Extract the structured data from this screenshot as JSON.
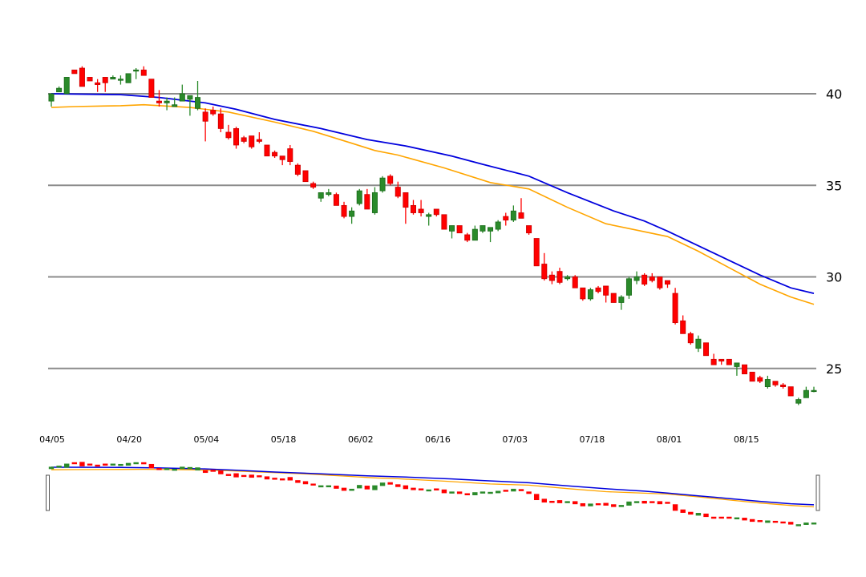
{
  "chart_data": {
    "type": "candlestick",
    "grid": true,
    "y_axis_position": "right",
    "y_ticks": [
      25,
      30,
      35,
      40
    ],
    "x_tick_labels": [
      "04/05",
      "04/20",
      "05/04",
      "05/18",
      "06/02",
      "06/16",
      "07/03",
      "07/18",
      "08/01",
      "08/15"
    ],
    "candles": [
      [
        39.6,
        40.0,
        39.3,
        40.0
      ],
      [
        40.1,
        40.4,
        40.1,
        40.3
      ],
      [
        40.0,
        40.9,
        40.0,
        40.9
      ],
      [
        41.3,
        41.3,
        41.2,
        41.1
      ],
      [
        41.4,
        41.5,
        40.4,
        40.4
      ],
      [
        40.9,
        40.9,
        40.7,
        40.7
      ],
      [
        40.6,
        40.8,
        40.1,
        40.5
      ],
      [
        40.9,
        40.9,
        40.1,
        40.6
      ],
      [
        40.8,
        41.0,
        40.8,
        40.9
      ],
      [
        40.8,
        41.0,
        40.5,
        40.8
      ],
      [
        40.6,
        41.1,
        40.6,
        41.1
      ],
      [
        41.3,
        41.4,
        40.8,
        41.3
      ],
      [
        41.3,
        41.5,
        41.0,
        41.0
      ],
      [
        40.8,
        40.8,
        39.8,
        39.8
      ],
      [
        39.6,
        40.2,
        39.3,
        39.5
      ],
      [
        39.5,
        39.8,
        39.1,
        39.6
      ],
      [
        39.3,
        39.8,
        39.3,
        39.4
      ],
      [
        39.6,
        40.5,
        39.6,
        40.0
      ],
      [
        39.7,
        39.8,
        38.8,
        39.9
      ],
      [
        39.2,
        40.7,
        39.1,
        39.8
      ],
      [
        39.0,
        39.2,
        37.4,
        38.5
      ],
      [
        39.1,
        39.3,
        38.8,
        38.9
      ],
      [
        38.9,
        39.2,
        37.9,
        38.1
      ],
      [
        37.9,
        38.3,
        37.5,
        37.6
      ],
      [
        38.1,
        38.2,
        37.0,
        37.2
      ],
      [
        37.6,
        37.7,
        37.3,
        37.4
      ],
      [
        37.7,
        37.7,
        37.0,
        37.1
      ],
      [
        37.5,
        37.9,
        37.3,
        37.4
      ],
      [
        37.2,
        37.2,
        36.6,
        36.6
      ],
      [
        36.8,
        36.9,
        36.5,
        36.6
      ],
      [
        36.6,
        36.6,
        36.1,
        36.4
      ],
      [
        37.0,
        37.2,
        36.1,
        36.3
      ],
      [
        36.1,
        36.2,
        35.5,
        35.6
      ],
      [
        35.8,
        35.8,
        35.2,
        35.2
      ],
      [
        35.1,
        35.2,
        34.8,
        34.9
      ],
      [
        34.3,
        34.6,
        34.1,
        34.6
      ],
      [
        34.5,
        34.8,
        34.4,
        34.6
      ],
      [
        34.5,
        34.6,
        33.9,
        33.9
      ],
      [
        33.9,
        34.1,
        33.2,
        33.3
      ],
      [
        33.3,
        33.8,
        32.9,
        33.6
      ],
      [
        34.0,
        34.8,
        33.9,
        34.7
      ],
      [
        34.5,
        34.8,
        33.7,
        33.7
      ],
      [
        33.5,
        34.9,
        33.4,
        34.6
      ],
      [
        34.7,
        35.5,
        34.6,
        35.4
      ],
      [
        35.5,
        35.6,
        35.0,
        35.1
      ],
      [
        34.9,
        35.2,
        34.3,
        34.4
      ],
      [
        34.6,
        34.6,
        32.9,
        33.8
      ],
      [
        33.9,
        34.2,
        33.4,
        33.5
      ],
      [
        33.7,
        34.2,
        33.3,
        33.5
      ],
      [
        33.3,
        33.5,
        32.8,
        33.4
      ],
      [
        33.7,
        33.7,
        33.3,
        33.4
      ],
      [
        33.4,
        33.4,
        32.6,
        32.6
      ],
      [
        32.5,
        32.8,
        32.1,
        32.8
      ],
      [
        32.8,
        32.8,
        32.4,
        32.4
      ],
      [
        32.3,
        32.4,
        31.9,
        32.0
      ],
      [
        32.0,
        32.8,
        32.0,
        32.6
      ],
      [
        32.5,
        32.8,
        32.4,
        32.8
      ],
      [
        32.5,
        32.6,
        31.9,
        32.7
      ],
      [
        32.6,
        33.1,
        32.5,
        33.0
      ],
      [
        33.3,
        33.5,
        32.8,
        33.1
      ],
      [
        33.1,
        33.9,
        33.0,
        33.6
      ],
      [
        33.5,
        34.3,
        33.2,
        33.2
      ],
      [
        32.8,
        32.8,
        32.3,
        32.4
      ],
      [
        32.1,
        32.1,
        30.6,
        30.6
      ],
      [
        30.7,
        31.3,
        29.8,
        29.9
      ],
      [
        30.1,
        30.3,
        29.6,
        29.8
      ],
      [
        30.3,
        30.5,
        29.6,
        29.7
      ],
      [
        29.9,
        30.1,
        29.8,
        30.0
      ],
      [
        30.0,
        30.1,
        29.4,
        29.4
      ],
      [
        29.4,
        29.4,
        28.7,
        28.8
      ],
      [
        28.8,
        29.4,
        28.7,
        29.3
      ],
      [
        29.4,
        29.5,
        29.1,
        29.2
      ],
      [
        29.5,
        29.5,
        28.6,
        29.0
      ],
      [
        29.1,
        29.1,
        28.6,
        28.6
      ],
      [
        28.6,
        29.0,
        28.2,
        28.9
      ],
      [
        29.0,
        30.0,
        28.8,
        29.9
      ],
      [
        29.8,
        30.3,
        29.6,
        30.0
      ],
      [
        30.1,
        30.2,
        29.5,
        29.6
      ],
      [
        30.0,
        30.2,
        29.7,
        29.8
      ],
      [
        30.0,
        30.0,
        29.3,
        29.4
      ],
      [
        29.8,
        29.8,
        29.4,
        29.6
      ],
      [
        29.1,
        29.4,
        27.4,
        27.5
      ],
      [
        27.6,
        27.9,
        26.9,
        26.9
      ],
      [
        26.9,
        27.0,
        26.3,
        26.4
      ],
      [
        26.1,
        26.8,
        25.9,
        26.6
      ],
      [
        26.4,
        26.4,
        25.7,
        25.7
      ],
      [
        25.5,
        25.8,
        25.2,
        25.2
      ],
      [
        25.5,
        25.5,
        25.2,
        25.4
      ],
      [
        25.5,
        25.5,
        25.2,
        25.2
      ],
      [
        25.1,
        25.3,
        24.6,
        25.3
      ],
      [
        25.2,
        25.2,
        24.7,
        24.7
      ],
      [
        24.8,
        24.8,
        24.3,
        24.3
      ],
      [
        24.5,
        24.6,
        24.2,
        24.3
      ],
      [
        24.0,
        24.6,
        23.9,
        24.4
      ],
      [
        24.3,
        24.3,
        24.0,
        24.1
      ],
      [
        24.1,
        24.2,
        23.9,
        24.0
      ],
      [
        24.0,
        24.0,
        23.5,
        23.5
      ],
      [
        23.1,
        23.4,
        23.0,
        23.3
      ],
      [
        23.4,
        24.0,
        23.4,
        23.8
      ],
      [
        23.8,
        24.0,
        23.7,
        23.8
      ]
    ],
    "sma_blue": [
      [
        0,
        40.0
      ],
      [
        9,
        39.95
      ],
      [
        14,
        39.8
      ],
      [
        20,
        39.5
      ],
      [
        24,
        39.15
      ],
      [
        29,
        38.6
      ],
      [
        35,
        38.1
      ],
      [
        41,
        37.5
      ],
      [
        46,
        37.15
      ],
      [
        52,
        36.6
      ],
      [
        56,
        36.15
      ],
      [
        62,
        35.5
      ],
      [
        67,
        34.6
      ],
      [
        73,
        33.6
      ],
      [
        77,
        33.05
      ],
      [
        80,
        32.5
      ],
      [
        84,
        31.7
      ],
      [
        88,
        30.9
      ],
      [
        92,
        30.1
      ],
      [
        96,
        29.4
      ],
      [
        99,
        29.1
      ]
    ],
    "sma_orange": [
      [
        0,
        39.25
      ],
      [
        3,
        39.3
      ],
      [
        9,
        39.35
      ],
      [
        12,
        39.4
      ],
      [
        18,
        39.25
      ],
      [
        23,
        39.0
      ],
      [
        29,
        38.45
      ],
      [
        34,
        37.95
      ],
      [
        39,
        37.3
      ],
      [
        42,
        36.9
      ],
      [
        45,
        36.65
      ],
      [
        51,
        35.95
      ],
      [
        57,
        35.15
      ],
      [
        62,
        34.8
      ],
      [
        67,
        33.8
      ],
      [
        72,
        32.9
      ],
      [
        76,
        32.55
      ],
      [
        80,
        32.2
      ],
      [
        84,
        31.4
      ],
      [
        88,
        30.5
      ],
      [
        92,
        29.6
      ],
      [
        96,
        28.9
      ],
      [
        99,
        28.5
      ]
    ],
    "colors": {
      "up": "#2a8a2a",
      "down": "#ff0000",
      "sma_blue": "#0000dd",
      "sma_orange": "#ffa500",
      "grid": "#8c8c8c"
    }
  }
}
